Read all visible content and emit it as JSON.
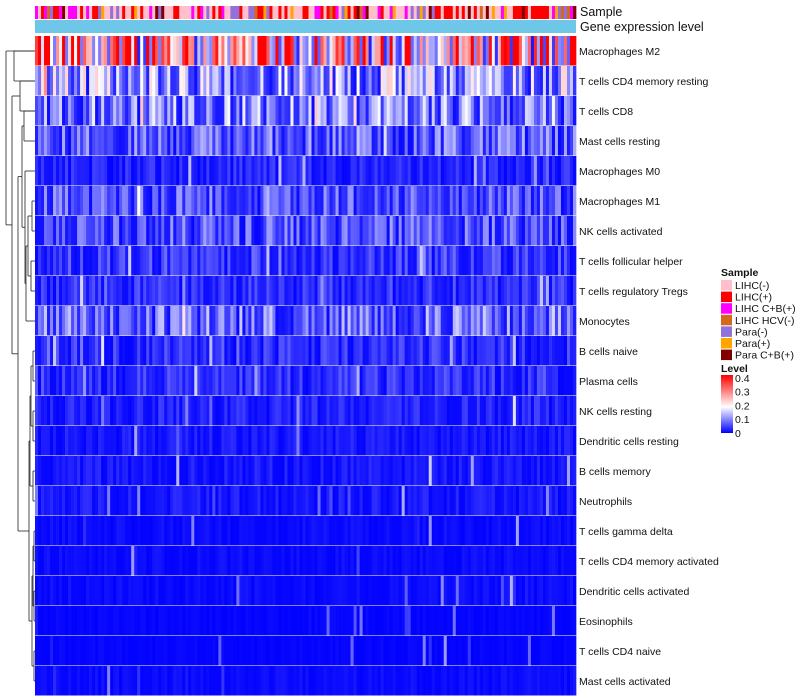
{
  "chart_data": {
    "type": "heatmap",
    "title": "",
    "annotation_tracks": [
      "Sample",
      "Gene expression level"
    ],
    "rows": [
      {
        "name": "Macrophages M2",
        "mean": 0.3
      },
      {
        "name": "T cells CD4 memory resting",
        "mean": 0.14
      },
      {
        "name": "T cells CD8",
        "mean": 0.11
      },
      {
        "name": "Mast cells resting",
        "mean": 0.08
      },
      {
        "name": "Macrophages M0",
        "mean": 0.03
      },
      {
        "name": "Macrophages M1",
        "mean": 0.07
      },
      {
        "name": "NK cells activated",
        "mean": 0.07
      },
      {
        "name": "T cells follicular helper",
        "mean": 0.05
      },
      {
        "name": "T cells regulatory  Tregs",
        "mean": 0.04
      },
      {
        "name": "Monocytes",
        "mean": 0.09
      },
      {
        "name": "B cells naive",
        "mean": 0.04
      },
      {
        "name": "Plasma cells",
        "mean": 0.04
      },
      {
        "name": "NK cells resting",
        "mean": 0.03
      },
      {
        "name": "Dendritic cells resting",
        "mean": 0.02
      },
      {
        "name": "B cells memory",
        "mean": 0.02
      },
      {
        "name": "Neutrophils",
        "mean": 0.02
      },
      {
        "name": "T cells gamma delta",
        "mean": 0.01
      },
      {
        "name": "T cells CD4 memory activated",
        "mean": 0.01
      },
      {
        "name": "Dendritic cells activated",
        "mean": 0.01
      },
      {
        "name": "Eosinophils",
        "mean": 0.005
      },
      {
        "name": "T cells CD4 naive",
        "mean": 0.005
      },
      {
        "name": "Mast cells activated",
        "mean": 0.01
      }
    ],
    "legend_sample": {
      "title": "Sample",
      "items": [
        {
          "label": "LIHC(-)",
          "color": "#FFC0CB"
        },
        {
          "label": "LIHC(+)",
          "color": "#FF0000"
        },
        {
          "label": "LIHC C+B(+)",
          "color": "#FF00FF"
        },
        {
          "label": "LIHC HCV(-)",
          "color": "#D2691E"
        },
        {
          "label": "Para(-)",
          "color": "#9370DB"
        },
        {
          "label": "Para(+)",
          "color": "#FFA500"
        },
        {
          "label": "Para C+B(+)",
          "color": "#800000"
        }
      ]
    },
    "legend_level": {
      "title": "Level",
      "ticks": [
        "0.4",
        "0.3",
        "0.2",
        "0.1",
        "0"
      ],
      "tick_values": [
        0.4,
        0.3,
        0.2,
        0.1,
        0
      ],
      "range": [
        0,
        0.42
      ],
      "colors": {
        "low": "#0000FF",
        "mid": "#FFFFFF",
        "high": "#FF0000"
      }
    },
    "gene_expression_color": "#6EC6E8"
  }
}
